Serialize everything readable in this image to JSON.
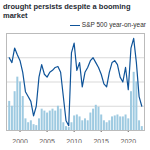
{
  "chart_data": {
    "type": "bar",
    "title": "drought persists despite a booming market",
    "x": [
      1998,
      1998.5,
      1999,
      1999.5,
      2000,
      2000.5,
      2001,
      2001.5,
      2002,
      2002.5,
      2003,
      2003.5,
      2004,
      2004.5,
      2005,
      2005.5,
      2006,
      2006.5,
      2007,
      2007.5,
      2008,
      2008.5,
      2009,
      2009.5,
      2010,
      2010.5,
      2011,
      2011.5,
      2012,
      2012.5,
      2013,
      2013.5,
      2014,
      2014.5,
      2015,
      2015.5,
      2016,
      2016.5,
      2017,
      2017.5,
      2018,
      2018.5,
      2019,
      2019.5,
      2020,
      2020.5,
      2021,
      2021.5,
      2022,
      2022.5
    ],
    "series": [
      {
        "type": "bar",
        "color": "#9ecae1",
        "values": [
          30,
          25,
          40,
          55,
          50,
          35,
          12,
          8,
          10,
          6,
          5,
          12,
          22,
          20,
          18,
          20,
          22,
          20,
          25,
          22,
          8,
          4,
          3,
          8,
          15,
          16,
          14,
          10,
          12,
          10,
          18,
          22,
          26,
          24,
          16,
          10,
          8,
          10,
          14,
          15,
          16,
          14,
          14,
          16,
          12,
          40,
          60,
          50,
          10,
          4
        ]
      },
      {
        "name": "S&P 500 year-on-year",
        "type": "line",
        "color": "#0f5499",
        "values": [
          75,
          70,
          85,
          78,
          72,
          60,
          40,
          35,
          30,
          15,
          25,
          55,
          68,
          58,
          55,
          60,
          62,
          65,
          66,
          60,
          35,
          10,
          5,
          80,
          90,
          62,
          70,
          45,
          60,
          65,
          72,
          75,
          70,
          65,
          58,
          48,
          45,
          60,
          70,
          72,
          68,
          55,
          50,
          65,
          42,
          85,
          95,
          70,
          35,
          25
        ]
      }
    ],
    "xlim": [
      1997.5,
      2023
    ],
    "xticks": [
      2000,
      2005,
      2010,
      2015,
      2020
    ],
    "ylim": [
      0,
      100
    ],
    "yticks": [
      0,
      25,
      50,
      75,
      100
    ],
    "grid": true,
    "tick_labels": "x",
    "legend": "top-right"
  }
}
